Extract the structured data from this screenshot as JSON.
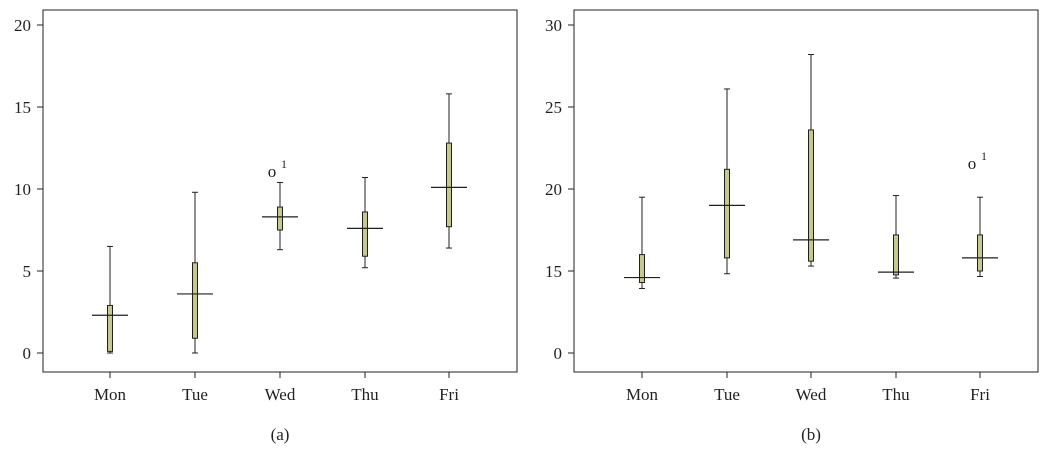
{
  "colors": {
    "box_fill": "#c5c990",
    "box_stroke": "#231f20",
    "axis": "#231f20"
  },
  "chart_data": [
    {
      "type": "box",
      "panel_label": "(a)",
      "categories": [
        "Mon",
        "Tue",
        "Wed",
        "Thu",
        "Fri"
      ],
      "ylim": [
        -1.2,
        21
      ],
      "yticks": [
        0,
        5,
        10,
        15,
        20
      ],
      "ytick_labels": [
        "0",
        "5",
        "10",
        "15",
        "20"
      ],
      "series": [
        {
          "category": "Mon",
          "min": 0.0,
          "q1": 0.1,
          "median": 2.3,
          "q3": 2.9,
          "max": 6.5
        },
        {
          "category": "Tue",
          "min": 0.0,
          "q1": 0.9,
          "median": 3.6,
          "q3": 5.5,
          "max": 9.8
        },
        {
          "category": "Wed",
          "min": 6.3,
          "q1": 7.5,
          "median": 8.3,
          "q3": 8.9,
          "max": 10.4
        },
        {
          "category": "Thu",
          "min": 5.2,
          "q1": 5.9,
          "median": 7.6,
          "q3": 8.6,
          "max": 10.7
        },
        {
          "category": "Fri",
          "min": 6.4,
          "q1": 7.7,
          "median": 10.1,
          "q3": 12.8,
          "max": 15.8
        }
      ],
      "outliers": [
        {
          "category": "Wed",
          "value": 11.1,
          "marker": "o",
          "label": "1"
        }
      ]
    },
    {
      "type": "box",
      "panel_label": "(b)",
      "categories": [
        "Mon",
        "Tue",
        "Wed",
        "Thu",
        "Fri"
      ],
      "ylim": [
        -1.2,
        31
      ],
      "yticks": [
        0,
        15,
        20,
        25,
        30
      ],
      "ytick_labels": [
        "0",
        "15",
        "20",
        "25",
        "30"
      ],
      "series": [
        {
          "category": "Mon",
          "min": 11.8,
          "q1": 12.9,
          "median": 13.8,
          "q3": 16.0,
          "max": 19.5
        },
        {
          "category": "Tue",
          "min": 14.5,
          "q1": 15.8,
          "median": 19.0,
          "q3": 21.2,
          "max": 26.1
        },
        {
          "category": "Wed",
          "min": 15.3,
          "q1": 15.6,
          "median": 16.9,
          "q3": 23.6,
          "max": 28.2
        },
        {
          "category": "Thu",
          "min": 13.7,
          "q1": 14.3,
          "median": 14.8,
          "q3": 17.2,
          "max": 19.6
        },
        {
          "category": "Fri",
          "min": 14.0,
          "q1": 15.0,
          "median": 15.8,
          "q3": 17.2,
          "max": 19.5
        }
      ],
      "outliers": [
        {
          "category": "Fri",
          "value": 21.6,
          "marker": "o",
          "label": "1"
        }
      ]
    }
  ]
}
